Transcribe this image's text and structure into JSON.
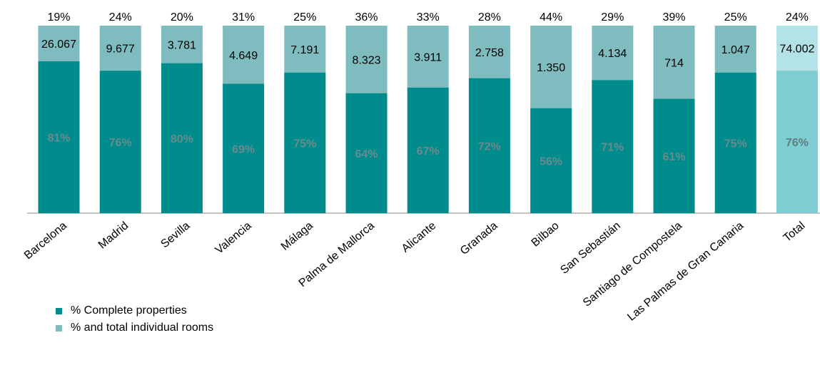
{
  "chart_data": {
    "type": "bar",
    "stacked": true,
    "categories": [
      "Barcelona",
      "Madrid",
      "Sevilla",
      "Valencia",
      "Málaga",
      "Palma de Mallorca",
      "Alicante",
      "Granada",
      "Bilbao",
      "San Sebastián",
      "Santiago de Compostela",
      "Las Palmas de Gran  Canaria",
      "Total"
    ],
    "series": [
      {
        "name": "% Complete properties",
        "values": [
          81,
          76,
          80,
          69,
          75,
          64,
          67,
          72,
          56,
          71,
          61,
          75,
          76
        ],
        "labels": [
          "81%",
          "76%",
          "80%",
          "69%",
          "75%",
          "64%",
          "67%",
          "72%",
          "56%",
          "71%",
          "61%",
          "75%",
          "76%"
        ]
      },
      {
        "name": "% and total individual rooms",
        "values": [
          19,
          24,
          20,
          31,
          25,
          36,
          33,
          28,
          44,
          29,
          39,
          25,
          24
        ],
        "labels": [
          "19%",
          "24%",
          "20%",
          "31%",
          "25%",
          "36%",
          "33%",
          "28%",
          "44%",
          "29%",
          "39%",
          "25%",
          "24%"
        ],
        "totals": [
          "26.067",
          "9.677",
          "3.781",
          "4.649",
          "7.191",
          "8.323",
          "3.911",
          "2.758",
          "1.350",
          "4.134",
          "714",
          "1.047",
          "74.002"
        ]
      }
    ],
    "ylim": [
      0,
      100
    ],
    "title": "",
    "xlabel": "",
    "ylabel": "",
    "grid": false,
    "legend": "bottom-left",
    "colors": {
      "complete": "#008c8c",
      "rooms": "#7fbcc0",
      "total_complete": "#7dcdd2",
      "total_rooms": "#b3e3e6",
      "inner_label": "#6b8a8c",
      "total_inner_label": "#5e7d80"
    }
  }
}
